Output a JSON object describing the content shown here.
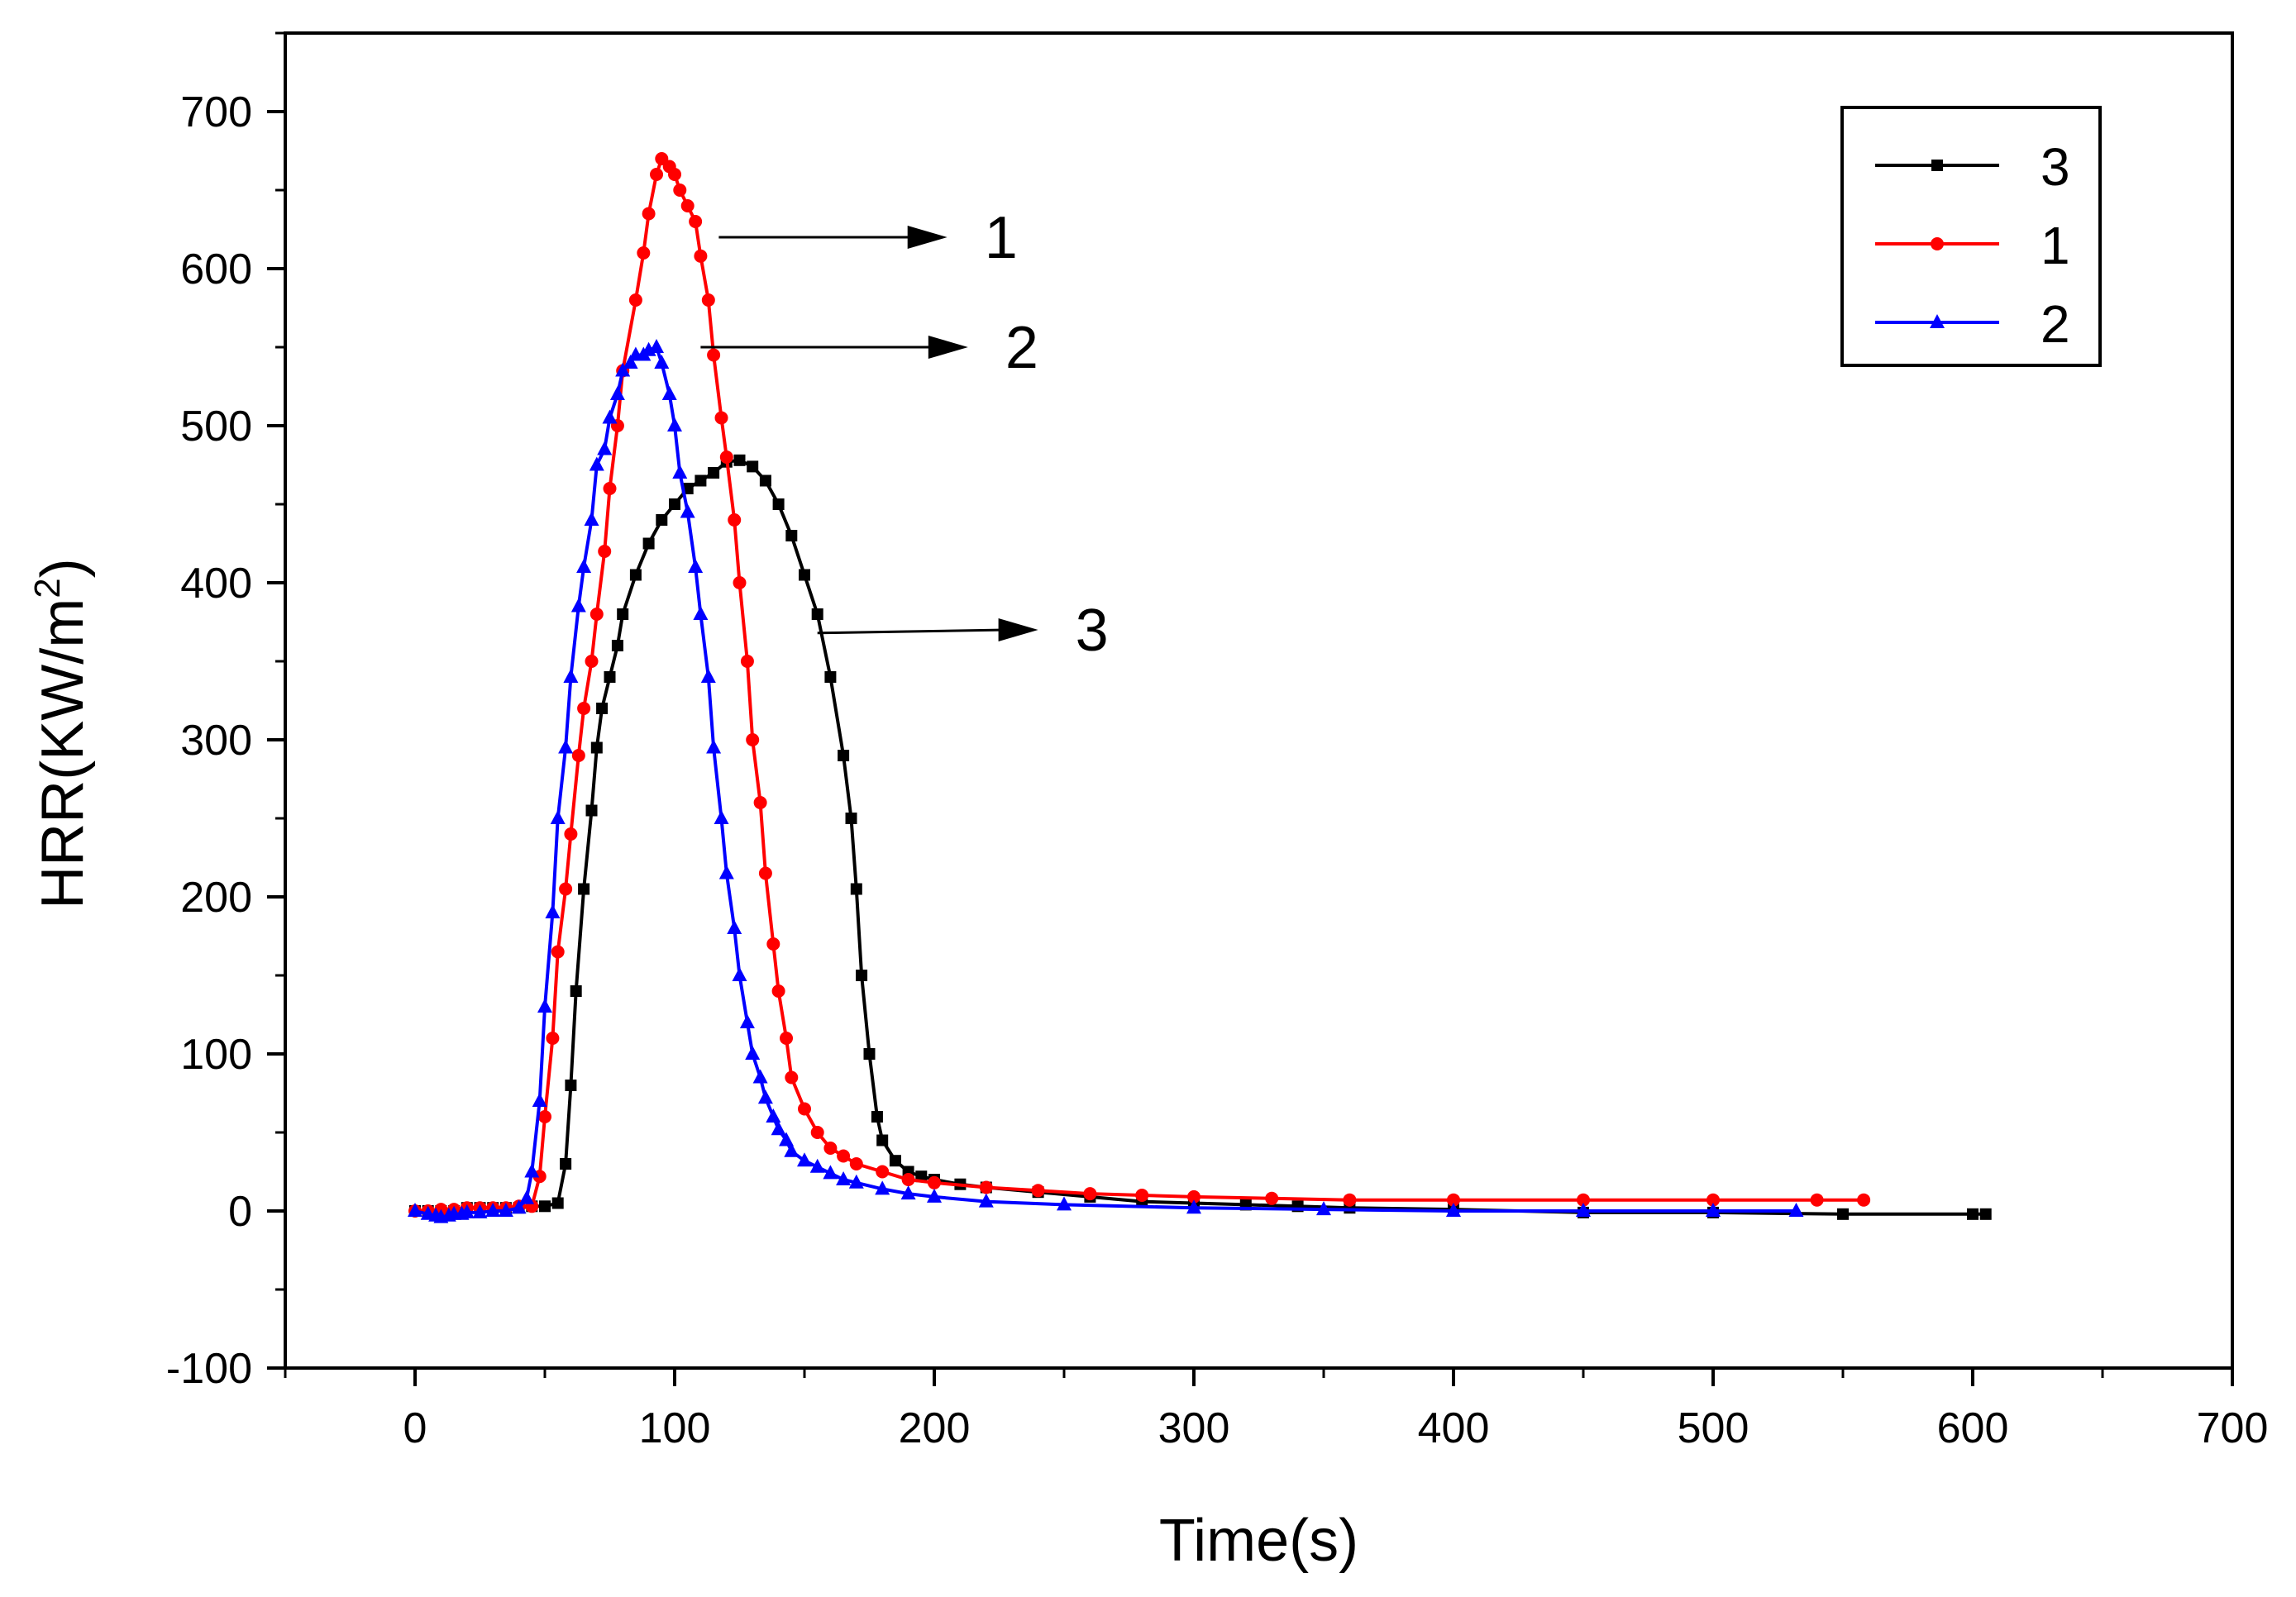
{
  "chart_data": {
    "type": "line",
    "title": "",
    "xlabel": "Time(s)",
    "ylabel_main": "HRR(KW/m",
    "ylabel_sup": "2",
    "ylabel_close": ")",
    "xlim": [
      -50,
      700
    ],
    "ylim": [
      -100,
      750
    ],
    "xticks": [
      0,
      100,
      200,
      300,
      400,
      500,
      600,
      700
    ],
    "yticks": [
      -100,
      0,
      100,
      200,
      300,
      400,
      500,
      600,
      700
    ],
    "legend_position": "top-right",
    "series": [
      {
        "name": "3",
        "color": "#000000",
        "marker": "square",
        "x": [
          0,
          5,
          10,
          15,
          20,
          25,
          30,
          35,
          40,
          45,
          50,
          55,
          58,
          60,
          62,
          65,
          68,
          70,
          72,
          75,
          78,
          80,
          85,
          90,
          95,
          100,
          105,
          110,
          115,
          120,
          125,
          130,
          135,
          140,
          145,
          150,
          155,
          160,
          165,
          168,
          170,
          172,
          175,
          178,
          180,
          185,
          190,
          195,
          200,
          210,
          220,
          240,
          260,
          280,
          300,
          320,
          340,
          360,
          400,
          450,
          500,
          550,
          600,
          605
        ],
        "y": [
          0,
          0,
          0,
          0,
          2,
          2,
          2,
          2,
          2,
          3,
          3,
          5,
          30,
          80,
          140,
          205,
          255,
          295,
          320,
          340,
          360,
          380,
          405,
          425,
          440,
          450,
          460,
          465,
          470,
          477,
          478,
          474,
          465,
          450,
          430,
          405,
          380,
          340,
          290,
          250,
          205,
          150,
          100,
          60,
          45,
          32,
          25,
          22,
          20,
          17,
          15,
          12,
          9,
          6,
          5,
          4,
          3,
          2,
          1,
          -1,
          -1,
          -2,
          -2,
          -2
        ]
      },
      {
        "name": "1",
        "color": "#ff0000",
        "marker": "circle",
        "x": [
          0,
          5,
          10,
          15,
          20,
          25,
          30,
          35,
          40,
          45,
          48,
          50,
          53,
          55,
          58,
          60,
          63,
          65,
          68,
          70,
          73,
          75,
          78,
          80,
          85,
          88,
          90,
          93,
          95,
          98,
          100,
          102,
          105,
          108,
          110,
          113,
          115,
          118,
          120,
          123,
          125,
          128,
          130,
          133,
          135,
          138,
          140,
          143,
          145,
          150,
          155,
          160,
          165,
          170,
          180,
          190,
          200,
          220,
          240,
          260,
          280,
          300,
          330,
          360,
          400,
          450,
          500,
          540,
          558
        ],
        "y": [
          0,
          0,
          1,
          1,
          2,
          2,
          2,
          2,
          3,
          3,
          22,
          60,
          110,
          165,
          205,
          240,
          290,
          320,
          350,
          380,
          420,
          460,
          500,
          535,
          580,
          610,
          635,
          660,
          670,
          665,
          660,
          650,
          640,
          630,
          608,
          580,
          545,
          505,
          480,
          440,
          400,
          350,
          300,
          260,
          215,
          170,
          140,
          110,
          85,
          65,
          50,
          40,
          35,
          30,
          25,
          20,
          18,
          15,
          13,
          11,
          10,
          9,
          8,
          7,
          7,
          7,
          7,
          7,
          7
        ]
      },
      {
        "name": "2",
        "color": "#0000ff",
        "marker": "triangle",
        "x": [
          0,
          5,
          8,
          10,
          13,
          15,
          18,
          20,
          25,
          30,
          35,
          40,
          43,
          45,
          48,
          50,
          53,
          55,
          58,
          60,
          63,
          65,
          68,
          70,
          73,
          75,
          78,
          80,
          83,
          85,
          88,
          90,
          93,
          95,
          98,
          100,
          102,
          105,
          108,
          110,
          113,
          115,
          118,
          120,
          123,
          125,
          128,
          130,
          133,
          135,
          138,
          140,
          143,
          145,
          150,
          155,
          160,
          165,
          170,
          180,
          190,
          200,
          220,
          250,
          300,
          350,
          400,
          450,
          500,
          532
        ],
        "y": [
          0,
          -2,
          -3,
          -4,
          -3,
          -2,
          -2,
          -1,
          -1,
          0,
          0,
          2,
          8,
          25,
          70,
          130,
          190,
          250,
          295,
          340,
          385,
          410,
          440,
          475,
          485,
          505,
          520,
          535,
          540,
          545,
          545,
          548,
          550,
          540,
          520,
          500,
          470,
          445,
          410,
          380,
          340,
          295,
          250,
          215,
          180,
          150,
          120,
          100,
          85,
          72,
          60,
          52,
          45,
          38,
          32,
          28,
          24,
          20,
          18,
          14,
          11,
          9,
          6,
          4,
          2,
          1,
          0,
          0,
          0,
          0
        ]
      }
    ],
    "annotations": [
      {
        "label": "1",
        "series": "1",
        "from": [
          117,
          620
        ],
        "to": [
          205,
          620
        ]
      },
      {
        "label": "2",
        "series": "2",
        "from": [
          110,
          550
        ],
        "to": [
          213,
          550
        ]
      },
      {
        "label": "3",
        "series": "3",
        "from": [
          155,
          368
        ],
        "to": [
          240,
          370
        ]
      }
    ]
  }
}
